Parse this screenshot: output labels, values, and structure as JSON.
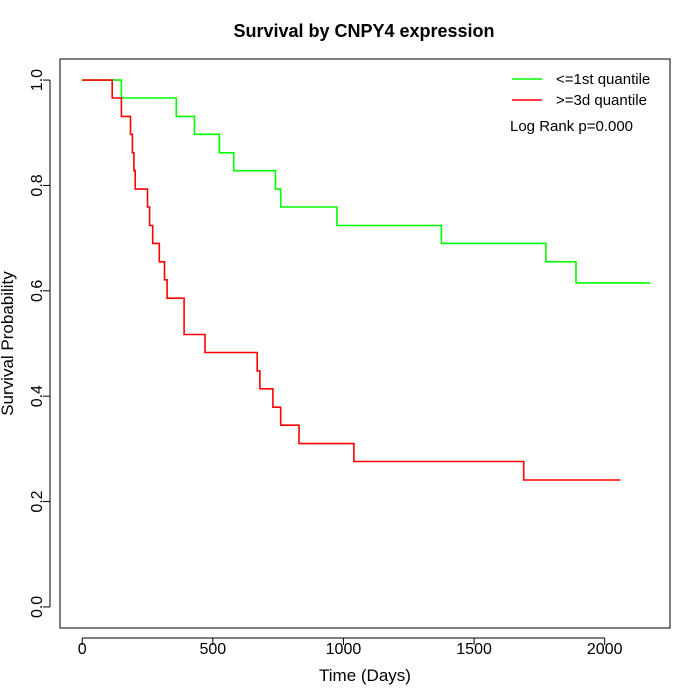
{
  "chart_data": {
    "type": "line",
    "title": "Survival by CNPY4 expression",
    "xlabel": "Time (Days)",
    "ylabel": "Survival Probability",
    "xlim": [
      -85,
      2250
    ],
    "ylim": [
      -0.04,
      1.04
    ],
    "xticks": [
      0,
      500,
      1000,
      1500,
      2000
    ],
    "xtick_labels": [
      "0",
      "500",
      "1000",
      "1500",
      "2000"
    ],
    "yticks": [
      0.0,
      0.2,
      0.4,
      0.6,
      0.8,
      1.0
    ],
    "ytick_labels": [
      "0.0",
      "0.2",
      "0.4",
      "0.6",
      "0.8",
      "1.0"
    ],
    "grid": false,
    "legend_position": "top-right",
    "annotation": "Log Rank p=0.000",
    "series": [
      {
        "name": "<=1st quantile",
        "color": "#00ff00",
        "step": true,
        "x": [
          0,
          150,
          360,
          430,
          525,
          580,
          740,
          760,
          975,
          1375,
          1775,
          1890,
          2175
        ],
        "y": [
          1.0,
          0.966,
          0.931,
          0.897,
          0.862,
          0.828,
          0.793,
          0.759,
          0.724,
          0.69,
          0.655,
          0.615,
          0.615
        ]
      },
      {
        "name": ">=3d quantile",
        "color": "#ff0000",
        "step": true,
        "x": [
          0,
          115,
          150,
          185,
          192,
          198,
          203,
          250,
          258,
          270,
          295,
          315,
          325,
          390,
          470,
          670,
          680,
          695,
          730,
          760,
          830,
          1040,
          1690,
          2060
        ],
        "y": [
          1.0,
          0.966,
          0.931,
          0.897,
          0.862,
          0.828,
          0.793,
          0.759,
          0.724,
          0.69,
          0.655,
          0.621,
          0.586,
          0.517,
          0.483,
          0.448,
          0.414,
          0.414,
          0.379,
          0.345,
          0.31,
          0.276,
          0.241,
          0.241
        ]
      }
    ]
  }
}
